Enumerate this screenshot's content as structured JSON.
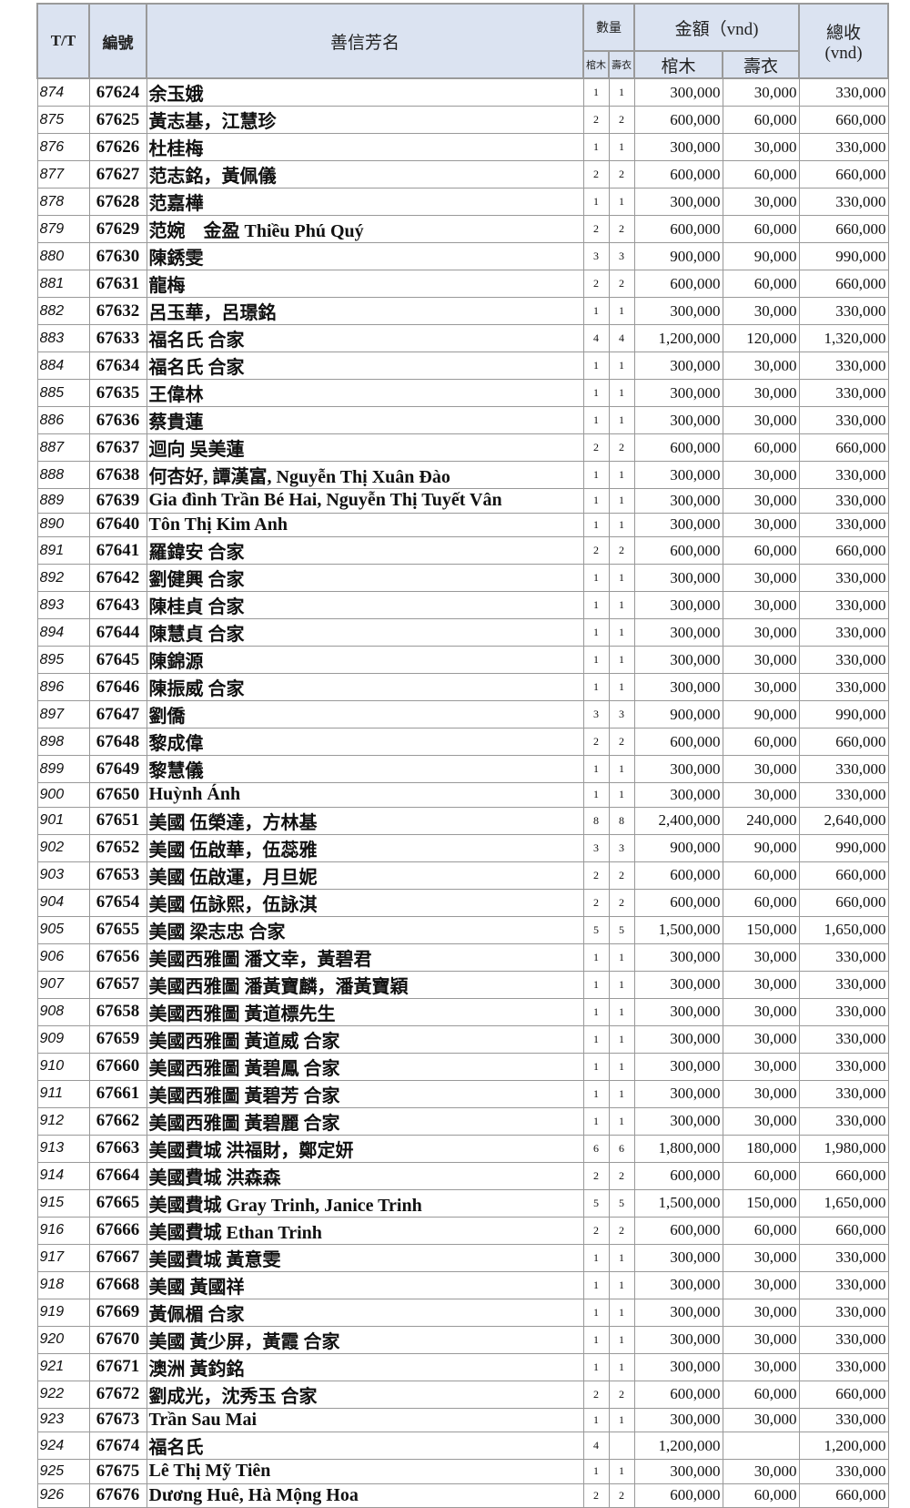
{
  "header": {
    "tt": "T/T",
    "code": "編號",
    "name": "善信芳名",
    "qty": "數量",
    "amount": "金額（vnd)",
    "total": "總收",
    "total_unit": "(vnd)",
    "qty_coffin": "棺木",
    "qty_shroud": "壽衣",
    "amt_coffin": "棺木",
    "amt_shroud": "壽衣"
  },
  "rows": [
    [
      "874",
      "67624",
      "余玉娥",
      "1",
      "1",
      "300,000",
      "30,000",
      "330,000"
    ],
    [
      "875",
      "67625",
      "黃志基，江慧珍",
      "2",
      "2",
      "600,000",
      "60,000",
      "660,000"
    ],
    [
      "876",
      "67626",
      "杜桂梅",
      "1",
      "1",
      "300,000",
      "30,000",
      "330,000"
    ],
    [
      "877",
      "67627",
      "范志銘，黃佩儀",
      "2",
      "2",
      "600,000",
      "60,000",
      "660,000"
    ],
    [
      "878",
      "67628",
      "范嘉樺",
      "1",
      "1",
      "300,000",
      "30,000",
      "330,000"
    ],
    [
      "879",
      "67629",
      "范婉　金盈 Thiều Phú Quý",
      "2",
      "2",
      "600,000",
      "60,000",
      "660,000"
    ],
    [
      "880",
      "67630",
      "陳銹雯",
      "3",
      "3",
      "900,000",
      "90,000",
      "990,000"
    ],
    [
      "881",
      "67631",
      "龍梅",
      "2",
      "2",
      "600,000",
      "60,000",
      "660,000"
    ],
    [
      "882",
      "67632",
      "呂玉華，呂璟銘",
      "1",
      "1",
      "300,000",
      "30,000",
      "330,000"
    ],
    [
      "883",
      "67633",
      "福名氏 合家",
      "4",
      "4",
      "1,200,000",
      "120,000",
      "1,320,000"
    ],
    [
      "884",
      "67634",
      "福名氏 合家",
      "1",
      "1",
      "300,000",
      "30,000",
      "330,000"
    ],
    [
      "885",
      "67635",
      "王偉林",
      "1",
      "1",
      "300,000",
      "30,000",
      "330,000"
    ],
    [
      "886",
      "67636",
      "蔡貴蓮",
      "1",
      "1",
      "300,000",
      "30,000",
      "330,000"
    ],
    [
      "887",
      "67637",
      "迴向 吳美蓮",
      "2",
      "2",
      "600,000",
      "60,000",
      "660,000"
    ],
    [
      "888",
      "67638",
      "何杏好, 譚漢富, Nguyễn Thị Xuân Đào",
      "1",
      "1",
      "300,000",
      "30,000",
      "330,000"
    ],
    [
      "889",
      "67639",
      "Gia đình Trần Bé Hai, Nguyễn Thị Tuyết Vân",
      "1",
      "1",
      "300,000",
      "30,000",
      "330,000"
    ],
    [
      "890",
      "67640",
      "Tôn Thị Kim Anh",
      "1",
      "1",
      "300,000",
      "30,000",
      "330,000"
    ],
    [
      "891",
      "67641",
      "羅鍏安 合家",
      "2",
      "2",
      "600,000",
      "60,000",
      "660,000"
    ],
    [
      "892",
      "67642",
      "劉健興 合家",
      "1",
      "1",
      "300,000",
      "30,000",
      "330,000"
    ],
    [
      "893",
      "67643",
      "陳桂貞 合家",
      "1",
      "1",
      "300,000",
      "30,000",
      "330,000"
    ],
    [
      "894",
      "67644",
      "陳慧貞 合家",
      "1",
      "1",
      "300,000",
      "30,000",
      "330,000"
    ],
    [
      "895",
      "67645",
      "陳錦源",
      "1",
      "1",
      "300,000",
      "30,000",
      "330,000"
    ],
    [
      "896",
      "67646",
      "陳振威 合家",
      "1",
      "1",
      "300,000",
      "30,000",
      "330,000"
    ],
    [
      "897",
      "67647",
      "劉僑",
      "3",
      "3",
      "900,000",
      "90,000",
      "990,000"
    ],
    [
      "898",
      "67648",
      "黎成偉",
      "2",
      "2",
      "600,000",
      "60,000",
      "660,000"
    ],
    [
      "899",
      "67649",
      "黎慧儀",
      "1",
      "1",
      "300,000",
      "30,000",
      "330,000"
    ],
    [
      "900",
      "67650",
      "Huỳnh Ánh",
      "1",
      "1",
      "300,000",
      "30,000",
      "330,000"
    ],
    [
      "901",
      "67651",
      "美國 伍榮達，方林基",
      "8",
      "8",
      "2,400,000",
      "240,000",
      "2,640,000"
    ],
    [
      "902",
      "67652",
      "美國 伍啟華，伍蕊雅",
      "3",
      "3",
      "900,000",
      "90,000",
      "990,000"
    ],
    [
      "903",
      "67653",
      "美國 伍啟運，月旦妮",
      "2",
      "2",
      "600,000",
      "60,000",
      "660,000"
    ],
    [
      "904",
      "67654",
      "美國 伍詠熙，伍詠淇",
      "2",
      "2",
      "600,000",
      "60,000",
      "660,000"
    ],
    [
      "905",
      "67655",
      "美國 梁志忠 合家",
      "5",
      "5",
      "1,500,000",
      "150,000",
      "1,650,000"
    ],
    [
      "906",
      "67656",
      "美國西雅圖 潘文幸，黃碧君",
      "1",
      "1",
      "300,000",
      "30,000",
      "330,000"
    ],
    [
      "907",
      "67657",
      "美國西雅圖 潘黃寶麟，潘黃寶穎",
      "1",
      "1",
      "300,000",
      "30,000",
      "330,000"
    ],
    [
      "908",
      "67658",
      "美國西雅圖 黃道標先生",
      "1",
      "1",
      "300,000",
      "30,000",
      "330,000"
    ],
    [
      "909",
      "67659",
      "美國西雅圖 黃道威 合家",
      "1",
      "1",
      "300,000",
      "30,000",
      "330,000"
    ],
    [
      "910",
      "67660",
      "美國西雅圖 黃碧鳳 合家",
      "1",
      "1",
      "300,000",
      "30,000",
      "330,000"
    ],
    [
      "911",
      "67661",
      "美國西雅圖 黃碧芳 合家",
      "1",
      "1",
      "300,000",
      "30,000",
      "330,000"
    ],
    [
      "912",
      "67662",
      "美國西雅圖 黃碧麗 合家",
      "1",
      "1",
      "300,000",
      "30,000",
      "330,000"
    ],
    [
      "913",
      "67663",
      "美國費城 洪福財，鄭定妍",
      "6",
      "6",
      "1,800,000",
      "180,000",
      "1,980,000"
    ],
    [
      "914",
      "67664",
      "美國費城 洪森森",
      "2",
      "2",
      "600,000",
      "60,000",
      "660,000"
    ],
    [
      "915",
      "67665",
      "美國費城 Gray Trinh, Janice Trinh",
      "5",
      "5",
      "1,500,000",
      "150,000",
      "1,650,000"
    ],
    [
      "916",
      "67666",
      "美國費城 Ethan Trinh",
      "2",
      "2",
      "600,000",
      "60,000",
      "660,000"
    ],
    [
      "917",
      "67667",
      "美國費城 黃意雯",
      "1",
      "1",
      "300,000",
      "30,000",
      "330,000"
    ],
    [
      "918",
      "67668",
      "美國 黃國祥",
      "1",
      "1",
      "300,000",
      "30,000",
      "330,000"
    ],
    [
      "919",
      "67669",
      "黃佩楣 合家",
      "1",
      "1",
      "300,000",
      "30,000",
      "330,000"
    ],
    [
      "920",
      "67670",
      "美國 黃少屏，黃霞 合家",
      "1",
      "1",
      "300,000",
      "30,000",
      "330,000"
    ],
    [
      "921",
      "67671",
      "澳洲 黃鈞銘",
      "1",
      "1",
      "300,000",
      "30,000",
      "330,000"
    ],
    [
      "922",
      "67672",
      "劉成光，沈秀玉 合家",
      "2",
      "2",
      "600,000",
      "60,000",
      "660,000"
    ],
    [
      "923",
      "67673",
      "Trần Sau Mai",
      "1",
      "1",
      "300,000",
      "30,000",
      "330,000"
    ],
    [
      "924",
      "67674",
      "福名氏",
      "4",
      "",
      "1,200,000",
      "",
      "1,200,000"
    ],
    [
      "925",
      "67675",
      "Lê Thị Mỹ Tiên",
      "1",
      "1",
      "300,000",
      "30,000",
      "330,000"
    ],
    [
      "926",
      "67676",
      "Dương Huê, Hà Mộng Hoa",
      "2",
      "2",
      "600,000",
      "60,000",
      "660,000"
    ]
  ]
}
